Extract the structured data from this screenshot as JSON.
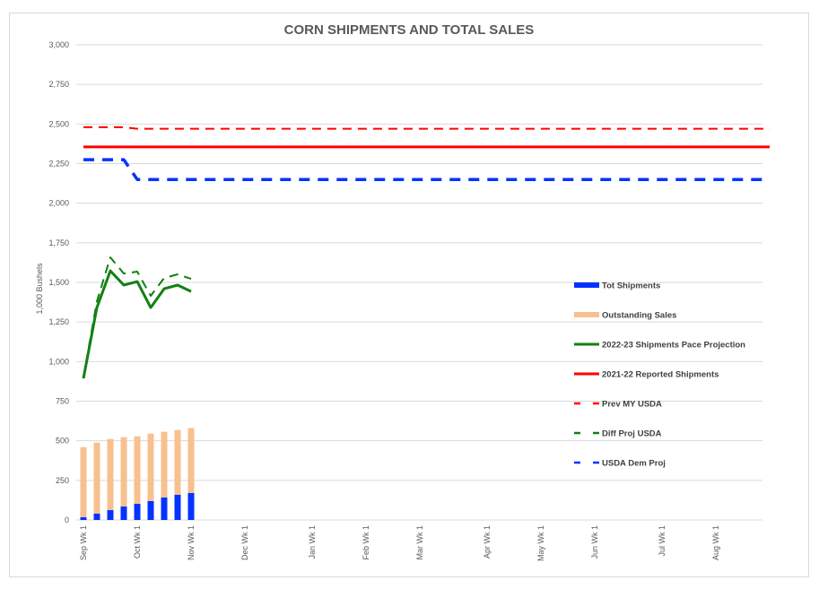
{
  "chart_data": {
    "type": "bar+line",
    "title": "CORN SHIPMENTS AND TOTAL SALES",
    "xlabel": "",
    "ylabel": "1,000 Bushels",
    "ylim": [
      0,
      3000
    ],
    "y_ticks": [
      0,
      250,
      500,
      750,
      1000,
      1250,
      1500,
      1750,
      2000,
      2250,
      2500,
      2750,
      3000
    ],
    "y_tick_labels": [
      "0",
      "250",
      "500",
      "750",
      "1,000",
      "1,250",
      "1,500",
      "1,750",
      "2,000",
      "2,250",
      "2,500",
      "2,750",
      "3,000"
    ],
    "grid": true,
    "legend_position": "right",
    "x_weeks_total": 52,
    "x_tick_labels": [
      {
        "week": 0,
        "label": "Sep Wk 1"
      },
      {
        "week": 4,
        "label": "Oct Wk 1"
      },
      {
        "week": 8,
        "label": "Nov Wk 1"
      },
      {
        "week": 12,
        "label": "Dec Wk 1"
      },
      {
        "week": 17,
        "label": "Jan Wk 1"
      },
      {
        "week": 21,
        "label": "Feb Wk 1"
      },
      {
        "week": 25,
        "label": "Mar Wk 1"
      },
      {
        "week": 30,
        "label": "Apr Wk 1"
      },
      {
        "week": 34,
        "label": "May Wk 1"
      },
      {
        "week": 38,
        "label": "Jun Wk 1"
      },
      {
        "week": 43,
        "label": "Jul Wk 1"
      },
      {
        "week": 47,
        "label": "Aug Wk 1"
      }
    ],
    "series": [
      {
        "name": "Tot Shipments",
        "kind": "stacked-bar",
        "color": "#0433ff",
        "values": [
          17,
          40,
          62,
          85,
          102,
          119,
          142,
          159,
          170
        ]
      },
      {
        "name": "Outstanding Sales",
        "kind": "stacked-bar",
        "color": "#f8c08f",
        "values": [
          443,
          449,
          449,
          438,
          426,
          426,
          415,
          409,
          410
        ]
      },
      {
        "name": "2022-23 Shipments Pace Projection",
        "kind": "line",
        "style": "solid",
        "color": "#138013",
        "values": [
          894,
          1341,
          1573,
          1483,
          1505,
          1341,
          1460,
          1483,
          1443
        ]
      },
      {
        "name": "2021-22 Reported Shipments",
        "kind": "line",
        "style": "solid",
        "color": "#ff0000",
        "constant": 2355,
        "weeks": [
          0,
          51
        ]
      },
      {
        "name": "Prev MY USDA",
        "kind": "line",
        "style": "dashed",
        "color": "#ff0000",
        "points": [
          [
            0,
            2480
          ],
          [
            3,
            2480
          ],
          [
            4,
            2470
          ],
          [
            51,
            2470
          ]
        ]
      },
      {
        "name": "Diff Proj USDA",
        "kind": "line",
        "style": "dashed",
        "color": "#138013",
        "values": [
          900,
          1380,
          1658,
          1556,
          1568,
          1415,
          1528,
          1551,
          1522
        ]
      },
      {
        "name": "USDA Dem Proj",
        "kind": "line",
        "style": "dashed",
        "color": "#0433ff",
        "points": [
          [
            0,
            2275
          ],
          [
            3,
            2275
          ],
          [
            4,
            2150
          ],
          [
            51,
            2150
          ]
        ]
      }
    ]
  }
}
